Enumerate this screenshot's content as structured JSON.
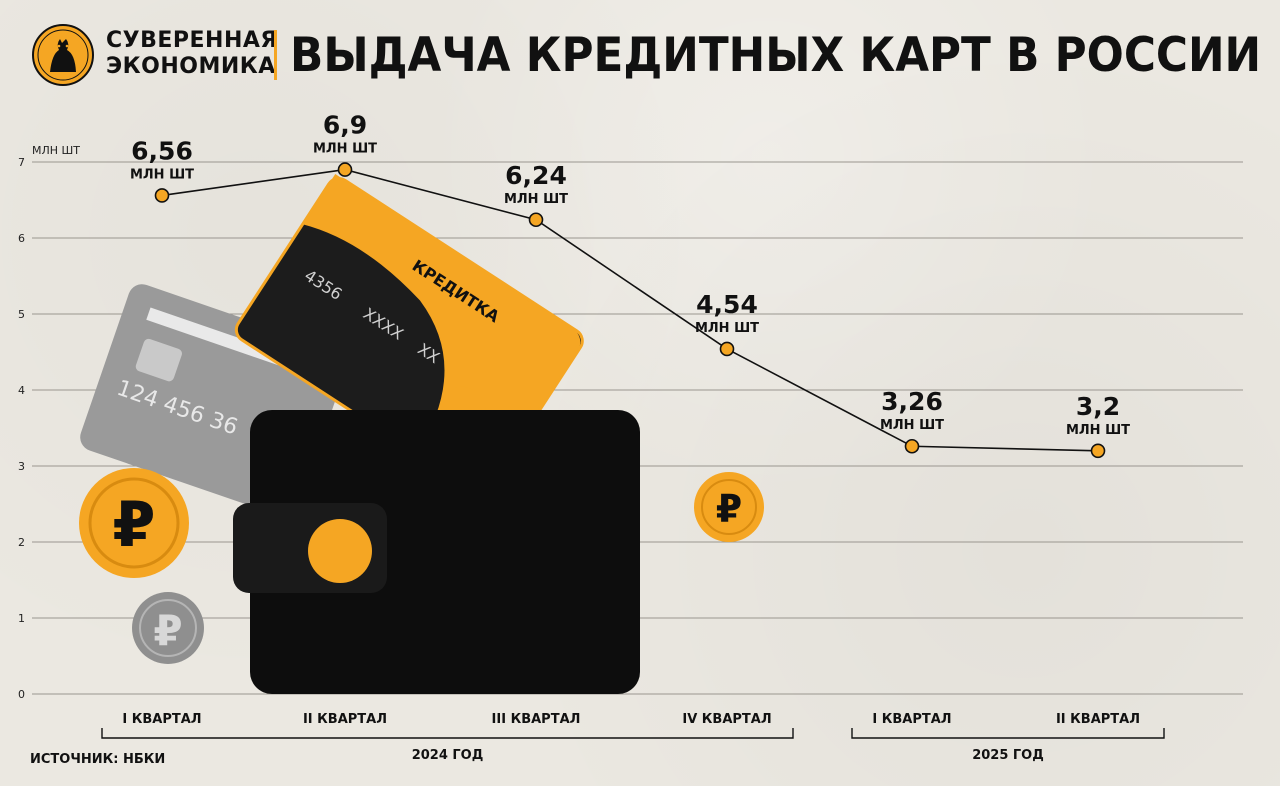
{
  "brand": {
    "line1": "СУВЕРЕННАЯ",
    "line2": "ЭКОНОМИКА"
  },
  "title": "ВЫДАЧА КРЕДИТНЫХ КАРТ В РОССИИ",
  "source": "ИСТОЧНИК: НБКИ",
  "colors": {
    "accent": "#f5a623",
    "line": "#111111",
    "background": "#ebe8e1"
  },
  "illustration": {
    "card_label": "КРЕДИТКА",
    "card_number_dark": [
      "4356",
      "XXXX",
      "XX"
    ],
    "card_number_grey": "124 456 36",
    "ruble_sign": "₽"
  },
  "chart_data": {
    "type": "line",
    "ylabel": "МЛН ШТ",
    "ylim": [
      0,
      7
    ],
    "yticks": [
      "0",
      "1",
      "2",
      "3",
      "4",
      "5",
      "6",
      "7"
    ],
    "grid": true,
    "categories": [
      "I КВАРТАЛ",
      "II КВАРТАЛ",
      "III КВАРТАЛ",
      "IV КВАРТАЛ",
      "I КВАРТАЛ",
      "II КВАРТАЛ"
    ],
    "groups": [
      {
        "label": "2024 ГОД",
        "from": 0,
        "to": 3
      },
      {
        "label": "2025 ГОД",
        "from": 4,
        "to": 5
      }
    ],
    "series": [
      {
        "values": [
          6.56,
          6.9,
          6.24,
          4.54,
          3.26,
          3.2
        ],
        "labels": [
          "6,56",
          "6,9",
          "6,24",
          "4,54",
          "3,26",
          "3,2"
        ],
        "unit": "МЛН ШТ"
      }
    ]
  }
}
